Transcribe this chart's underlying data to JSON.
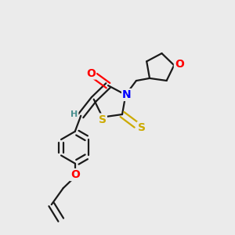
{
  "bg_color": "#ebebeb",
  "bond_color": "#1a1a1a",
  "bond_width": 1.6,
  "dbo": 0.013,
  "atom_colors": {
    "O": "#ff0000",
    "N": "#0000ff",
    "S": "#ccaa00",
    "H": "#4a9090",
    "C": "#1a1a1a"
  },
  "font_size": 9.5,
  "fig_size": [
    3.0,
    3.0
  ],
  "dpi": 100
}
